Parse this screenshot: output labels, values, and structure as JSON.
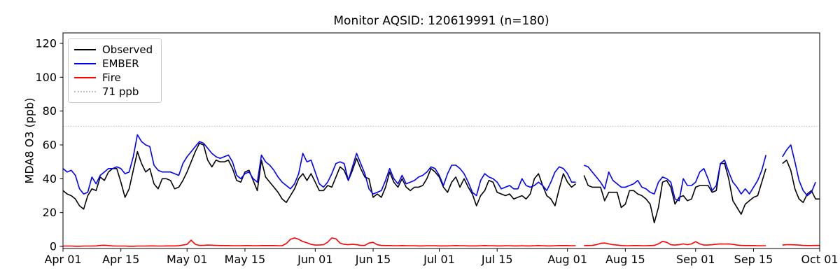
{
  "figure": {
    "title": "Monitor AQSID: 120619991 (n=180)",
    "ylabel": "MDA8 O3 (ppb)"
  },
  "chart_data": {
    "type": "line",
    "title": "Monitor AQSID: 120619991 (n=180)",
    "xlabel": "",
    "ylabel": "MDA8 O3 (ppb)",
    "grid": false,
    "legend_position": "upper left",
    "x_unit": "daily, day index 0 = Apr 01, day 183 = Oct 01",
    "n_label": 180,
    "ylim": [
      -1.2,
      126.2
    ],
    "yticks": [
      0,
      20,
      40,
      60,
      80,
      100,
      120
    ],
    "xticks": [
      {
        "day": 0,
        "label": "Apr 01"
      },
      {
        "day": 14,
        "label": "Apr 15"
      },
      {
        "day": 30,
        "label": "May 01"
      },
      {
        "day": 44,
        "label": "May 15"
      },
      {
        "day": 61,
        "label": "Jun 01"
      },
      {
        "day": 75,
        "label": "Jun 15"
      },
      {
        "day": 91,
        "label": "Jul 01"
      },
      {
        "day": 105,
        "label": "Jul 15"
      },
      {
        "day": 122,
        "label": "Aug 01"
      },
      {
        "day": 136,
        "label": "Aug 15"
      },
      {
        "day": 153,
        "label": "Sep 01"
      },
      {
        "day": 167,
        "label": "Sep 15"
      },
      {
        "day": 183,
        "label": "Oct 01"
      }
    ],
    "reference_line": {
      "label": "71 ppb",
      "value": 71,
      "style": "dotted",
      "color": "#c0c0c0"
    },
    "legend_entries": [
      {
        "label": "Observed",
        "color": "#000000",
        "style": "solid"
      },
      {
        "label": "EMBER",
        "color": "#0000ff",
        "style": "solid"
      },
      {
        "label": "Fire",
        "color": "#ff0000",
        "style": "solid"
      },
      {
        "label": "71 ppb",
        "color": "#c0c0c0",
        "style": "dotted"
      }
    ],
    "series": [
      {
        "name": "Observed",
        "color": "#000000",
        "values": [
          33,
          31,
          30,
          28,
          24,
          22,
          30,
          34,
          33,
          41,
          39,
          44,
          46,
          46,
          38,
          29,
          34,
          45,
          56,
          49,
          44,
          46,
          37,
          34,
          40,
          40,
          39,
          34,
          35,
          39,
          44,
          50,
          56,
          61,
          60,
          51,
          47,
          51,
          50,
          50,
          51,
          46,
          39,
          38,
          44,
          45,
          39,
          33,
          51,
          41,
          38,
          35,
          32,
          28,
          26,
          30,
          34,
          40,
          43,
          39,
          43,
          38,
          33,
          33,
          36,
          35,
          41,
          47,
          45,
          39,
          45,
          52,
          46,
          41,
          40,
          29,
          31,
          29,
          35,
          44,
          38,
          35,
          40,
          35,
          33,
          35,
          35,
          36,
          40,
          46,
          44,
          41,
          35,
          32,
          38,
          41,
          35,
          40,
          35,
          31,
          24,
          30,
          33,
          39,
          38,
          32,
          31,
          30,
          31,
          28,
          29,
          30,
          28,
          31,
          40,
          43,
          36,
          30,
          28,
          24,
          34,
          43,
          38,
          35,
          37,
          null,
          42,
          36,
          35,
          35,
          35,
          27,
          32,
          32,
          32,
          23,
          25,
          33,
          33,
          31,
          30,
          28,
          25,
          14,
          23,
          38,
          39,
          35,
          25,
          29,
          30,
          27,
          28,
          35,
          36,
          36,
          36,
          32,
          33,
          49,
          49,
          40,
          27,
          23,
          19,
          25,
          27,
          29,
          30,
          38,
          46,
          null,
          null,
          null,
          49,
          51,
          45,
          34,
          28,
          26,
          31,
          33,
          28,
          28
        ]
      },
      {
        "name": "EMBER",
        "color": "#0000ff",
        "values": [
          46,
          44,
          45,
          42,
          34,
          31,
          32,
          41,
          37,
          42,
          44,
          46,
          46,
          47,
          46,
          43,
          44,
          53,
          66,
          62,
          60,
          59,
          48,
          45,
          44,
          44,
          44,
          43,
          42,
          49,
          53,
          56,
          59,
          62,
          61,
          58,
          55,
          53,
          52,
          53,
          54,
          50,
          42,
          40,
          43,
          44,
          40,
          38,
          54,
          50,
          48,
          45,
          41,
          38,
          36,
          34,
          37,
          43,
          55,
          50,
          51,
          44,
          37,
          35,
          38,
          43,
          49,
          50,
          49,
          39,
          47,
          55,
          49,
          43,
          34,
          31,
          32,
          33,
          39,
          46,
          40,
          37,
          42,
          37,
          38,
          39,
          41,
          42,
          44,
          47,
          46,
          42,
          36,
          43,
          48,
          48,
          46,
          43,
          38,
          32,
          30,
          39,
          43,
          41,
          40,
          38,
          34,
          35,
          36,
          34,
          34,
          40,
          36,
          35,
          36,
          38,
          36,
          33,
          38,
          44,
          47,
          46,
          43,
          38,
          38,
          null,
          48,
          47,
          44,
          41,
          38,
          34,
          44,
          39,
          37,
          35,
          35,
          36,
          37,
          39,
          35,
          34,
          32,
          31,
          38,
          41,
          40,
          38,
          28,
          27,
          40,
          36,
          36,
          38,
          44,
          46,
          40,
          33,
          36,
          49,
          51,
          44,
          38,
          35,
          31,
          34,
          31,
          35,
          39,
          45,
          54,
          null,
          null,
          null,
          53,
          57,
          60,
          50,
          39,
          33,
          30,
          32,
          38,
          null
        ]
      },
      {
        "name": "Fire",
        "color": "#ff0000",
        "values": [
          0.2,
          0.2,
          0.2,
          0.1,
          0.1,
          0.2,
          0.2,
          0.2,
          0.3,
          0.6,
          0.7,
          0.5,
          0.3,
          0.2,
          0.2,
          0.2,
          0.1,
          0.1,
          0.2,
          0.2,
          0.2,
          0.3,
          0.3,
          0.2,
          0.2,
          0.3,
          0.3,
          0.3,
          0.4,
          0.8,
          1.2,
          3.7,
          1.2,
          0.6,
          0.6,
          0.8,
          0.7,
          0.6,
          0.5,
          0.5,
          0.5,
          0.4,
          0.4,
          0.4,
          0.5,
          0.5,
          0.4,
          0.4,
          0.5,
          0.5,
          0.5,
          0.5,
          0.4,
          0.4,
          1.7,
          4.2,
          5.0,
          4.2,
          2.9,
          2.1,
          1.2,
          0.8,
          0.8,
          1.0,
          2.5,
          5.0,
          4.5,
          2.0,
          1.2,
          1.0,
          1.3,
          1.0,
          0.6,
          0.6,
          2.0,
          2.4,
          1.0,
          0.6,
          0.5,
          0.5,
          0.4,
          0.4,
          0.5,
          0.4,
          0.4,
          0.4,
          0.3,
          0.3,
          0.4,
          0.4,
          0.4,
          0.3,
          0.3,
          0.3,
          0.4,
          0.5,
          0.4,
          0.4,
          0.3,
          0.3,
          0.3,
          0.4,
          0.5,
          0.4,
          0.4,
          0.3,
          0.3,
          0.4,
          0.4,
          0.3,
          0.3,
          0.4,
          0.3,
          0.3,
          0.4,
          0.5,
          0.4,
          0.3,
          0.3,
          0.4,
          0.5,
          0.5,
          0.5,
          0.4,
          0.4,
          null,
          0.5,
          0.5,
          0.6,
          1.0,
          1.8,
          2.0,
          1.5,
          1.0,
          0.8,
          0.5,
          0.4,
          0.4,
          0.5,
          0.5,
          0.4,
          0.4,
          0.5,
          0.6,
          1.5,
          3.0,
          2.4,
          1.0,
          0.8,
          1.0,
          1.5,
          1.0,
          1.5,
          2.8,
          1.5,
          0.8,
          0.8,
          1.0,
          1.3,
          1.5,
          1.4,
          1.5,
          1.2,
          0.8,
          0.6,
          0.5,
          0.5,
          0.5,
          0.4,
          0.4,
          0.4,
          null,
          null,
          null,
          0.8,
          1.0,
          1.0,
          0.9,
          0.8,
          0.6,
          0.5,
          0.5,
          0.6,
          0.5
        ]
      }
    ]
  }
}
